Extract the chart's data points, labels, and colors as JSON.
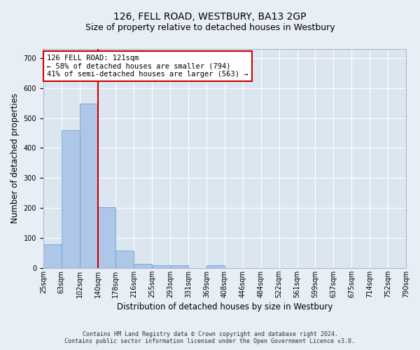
{
  "title": "126, FELL ROAD, WESTBURY, BA13 2GP",
  "subtitle": "Size of property relative to detached houses in Westbury",
  "xlabel": "Distribution of detached houses by size in Westbury",
  "ylabel": "Number of detached properties",
  "footer_line1": "Contains HM Land Registry data © Crown copyright and database right 2024.",
  "footer_line2": "Contains public sector information licensed under the Open Government Licence v3.0.",
  "bar_values": [
    78,
    460,
    547,
    203,
    57,
    14,
    9,
    9,
    0,
    8,
    0,
    0,
    0,
    0,
    0,
    0,
    0,
    0,
    0,
    0
  ],
  "bin_labels": [
    "25sqm",
    "63sqm",
    "102sqm",
    "140sqm",
    "178sqm",
    "216sqm",
    "255sqm",
    "293sqm",
    "331sqm",
    "369sqm",
    "408sqm",
    "446sqm",
    "484sqm",
    "522sqm",
    "561sqm",
    "599sqm",
    "637sqm",
    "675sqm",
    "714sqm",
    "752sqm",
    "790sqm"
  ],
  "bar_color": "#aec6e8",
  "bar_edge_color": "#5b9bd5",
  "bar_edge_width": 0.5,
  "vline_after_bin": 2,
  "vline_color": "#cc0000",
  "annotation_box_text": "126 FELL ROAD: 121sqm\n← 58% of detached houses are smaller (794)\n41% of semi-detached houses are larger (563) →",
  "annotation_box_color": "#cc0000",
  "ylim": [
    0,
    730
  ],
  "yticks": [
    0,
    100,
    200,
    300,
    400,
    500,
    600,
    700
  ],
  "bg_color": "#e8eef5",
  "plot_bg_color": "#dce6f1",
  "grid_color": "#ffffff",
  "title_fontsize": 10,
  "subtitle_fontsize": 9,
  "axis_label_fontsize": 8.5,
  "tick_fontsize": 7,
  "annotation_fontsize": 7.5,
  "footer_fontsize": 6
}
